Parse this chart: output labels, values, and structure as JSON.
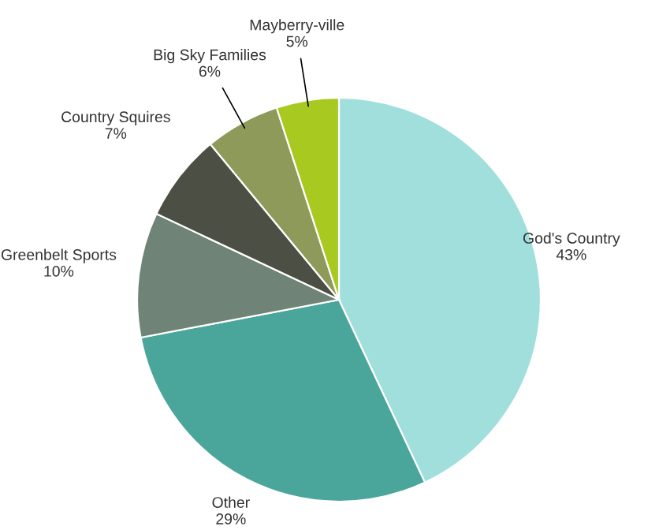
{
  "chart_data": {
    "type": "pie",
    "categories": [
      "God's Country",
      "Other",
      "Greenbelt Sports",
      "Country Squires",
      "Big Sky Families",
      "Mayberry-ville"
    ],
    "values": [
      43,
      29,
      10,
      7,
      6,
      5
    ],
    "value_labels": [
      "43%",
      "29%",
      "10%",
      "7%",
      "6%",
      "5%"
    ],
    "colors": [
      "#a0dfdc",
      "#4aa69b",
      "#6f8376",
      "#4b4f44",
      "#8e9a5a",
      "#a8c920"
    ]
  }
}
